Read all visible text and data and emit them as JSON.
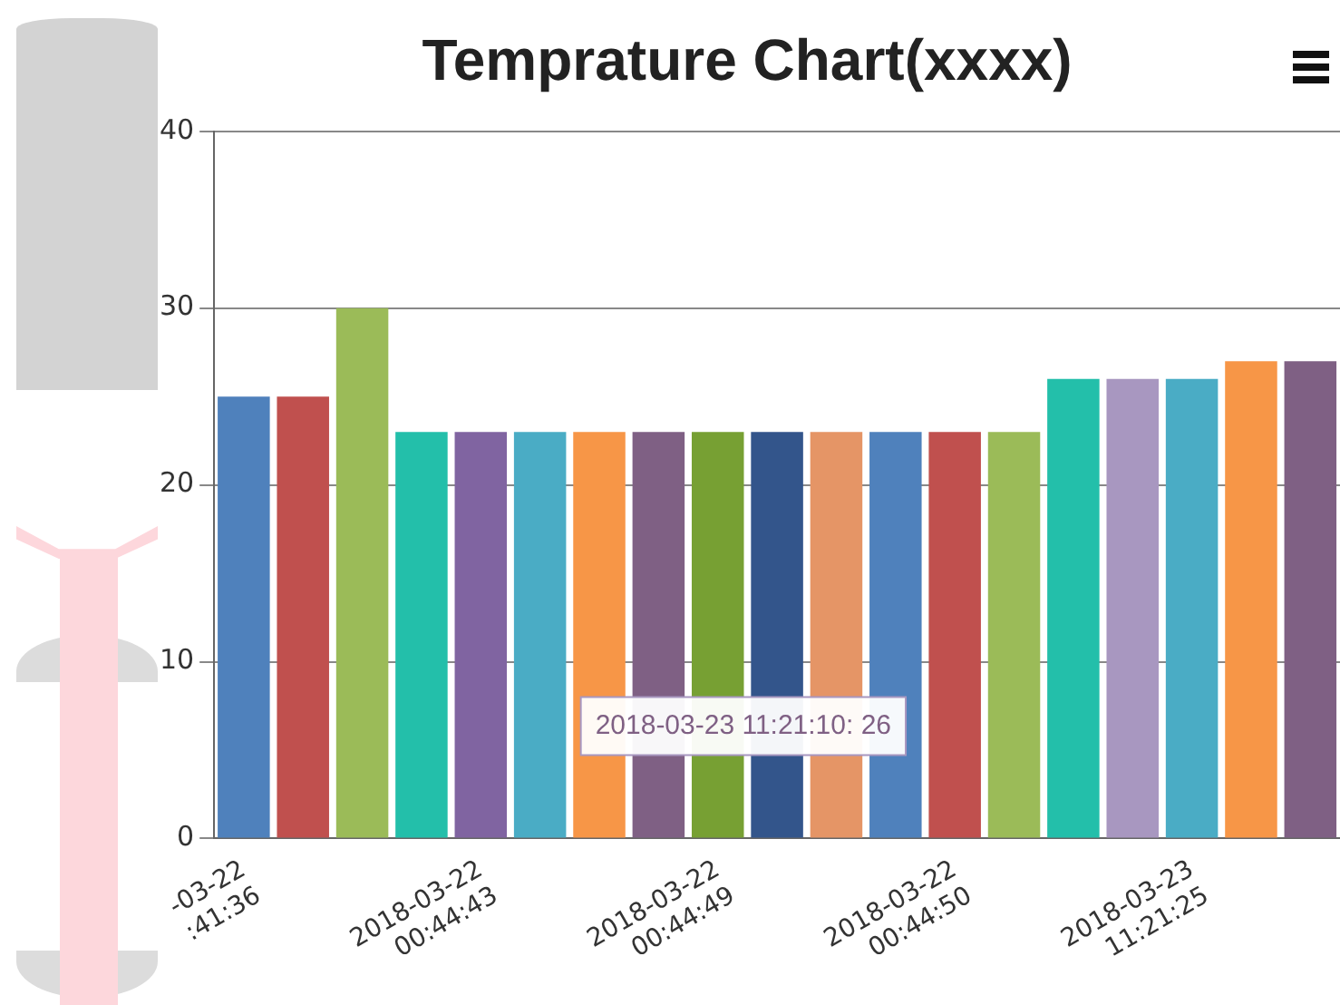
{
  "chart_data": {
    "type": "bar",
    "title": "Temprature Chart(xxxx)",
    "categories": [
      "-03-22 :41:36",
      null,
      null,
      null,
      "2018-03-22 00:44:43",
      null,
      null,
      null,
      "2018-03-22 00:44:49",
      null,
      null,
      null,
      "2018-03-22 00:44:50",
      null,
      null,
      null,
      "2018-03-23 11:21:25",
      null,
      null
    ],
    "values": [
      25,
      25,
      30,
      23,
      23,
      23,
      23,
      23,
      23,
      23,
      23,
      23,
      23,
      23,
      26,
      26,
      26,
      27,
      27
    ],
    "colors": [
      "#4f81bc",
      "#c0504e",
      "#9bbb58",
      "#23bfaa",
      "#8064a1",
      "#4aacc5",
      "#f79647",
      "#7f6084",
      "#77a033",
      "#33558b",
      "#e59566",
      "#4f81bc",
      "#c0504e",
      "#9bbb58",
      "#23bfaa",
      "#a897c0",
      "#4aacc5",
      "#f79647",
      "#7f6084"
    ],
    "ylim": [
      0,
      40
    ],
    "yticks": [
      0,
      10,
      20,
      30,
      40
    ],
    "grid": "y",
    "legend": false,
    "annotations": [
      "2018-03-23 11:21:10: 26"
    ]
  }
}
